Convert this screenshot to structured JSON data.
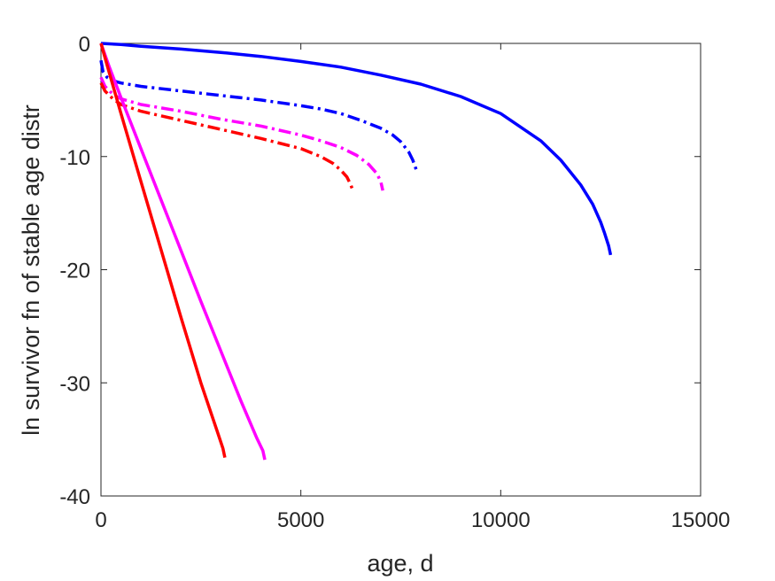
{
  "chart_data": {
    "type": "line",
    "xlabel": "age, d",
    "ylabel": "ln survivor fn of stable age distr",
    "xlim": [
      0,
      15000
    ],
    "ylim": [
      -40,
      0
    ],
    "xticks": [
      0,
      5000,
      10000,
      15000
    ],
    "yticks": [
      0,
      -10,
      -20,
      -30,
      -40
    ],
    "xtick_labels": [
      "0",
      "5000",
      "10000",
      "15000"
    ],
    "ytick_labels": [
      "0",
      "-10",
      "-20",
      "-30",
      "-40"
    ],
    "grid": false,
    "legend": "none",
    "series": [
      {
        "color": "#0000ff",
        "style": "solid",
        "x": [
          0,
          500,
          1000,
          2000,
          3000,
          4000,
          5000,
          6000,
          7000,
          8000,
          9000,
          10000,
          11000,
          11500,
          12000,
          12300,
          12500,
          12600,
          12700,
          12750
        ],
        "y": [
          0,
          -0.1,
          -0.25,
          -0.5,
          -0.8,
          -1.15,
          -1.6,
          -2.1,
          -2.8,
          -3.6,
          -4.7,
          -6.2,
          -8.6,
          -10.3,
          -12.5,
          -14.2,
          -15.8,
          -16.8,
          -17.9,
          -18.7
        ]
      },
      {
        "color": "#0000ff",
        "style": "dashdot",
        "x": [
          0,
          50,
          150,
          300,
          500,
          1000,
          2000,
          3000,
          4000,
          5000,
          5500,
          6000,
          6500,
          7000,
          7300,
          7500,
          7700,
          7800,
          7850,
          7900
        ],
        "y": [
          -1.5,
          -2.5,
          -3.0,
          -3.3,
          -3.5,
          -3.8,
          -4.2,
          -4.6,
          -5.0,
          -5.5,
          -5.8,
          -6.2,
          -6.8,
          -7.5,
          -8.1,
          -8.7,
          -9.6,
          -10.3,
          -10.8,
          -11.3
        ]
      },
      {
        "color": "#ff00ff",
        "style": "dashdot",
        "x": [
          0,
          100,
          300,
          500,
          1000,
          2000,
          3000,
          4000,
          5000,
          5500,
          6000,
          6400,
          6700,
          6900,
          7000,
          7050
        ],
        "y": [
          -3.0,
          -3.8,
          -4.5,
          -4.9,
          -5.4,
          -6.0,
          -6.7,
          -7.3,
          -8.1,
          -8.6,
          -9.2,
          -9.9,
          -10.7,
          -11.5,
          -12.2,
          -13.0
        ]
      },
      {
        "color": "#ff0000",
        "style": "dashdot",
        "x": [
          0,
          100,
          300,
          500,
          1000,
          2000,
          3000,
          4000,
          5000,
          5500,
          5800,
          6000,
          6150,
          6250,
          6300
        ],
        "y": [
          -3.5,
          -4.2,
          -4.9,
          -5.4,
          -6.0,
          -6.8,
          -7.6,
          -8.4,
          -9.3,
          -10.0,
          -10.6,
          -11.2,
          -11.8,
          -12.5,
          -13.0
        ]
      },
      {
        "color": "#ff00ff",
        "style": "solid",
        "x": [
          0,
          200,
          500,
          1000,
          1500,
          2000,
          2500,
          3000,
          3500,
          3900,
          4050,
          4100
        ],
        "y": [
          0,
          -2.0,
          -4.8,
          -9.3,
          -13.8,
          -18.3,
          -22.8,
          -27.2,
          -31.6,
          -34.9,
          -36.0,
          -36.8
        ]
      },
      {
        "color": "#ff0000",
        "style": "solid",
        "x": [
          0,
          200,
          500,
          1000,
          1500,
          2000,
          2500,
          2900,
          3050,
          3100
        ],
        "y": [
          0,
          -2.5,
          -6.2,
          -12.2,
          -18.2,
          -24.2,
          -30.0,
          -34.2,
          -35.8,
          -36.6
        ]
      }
    ]
  }
}
